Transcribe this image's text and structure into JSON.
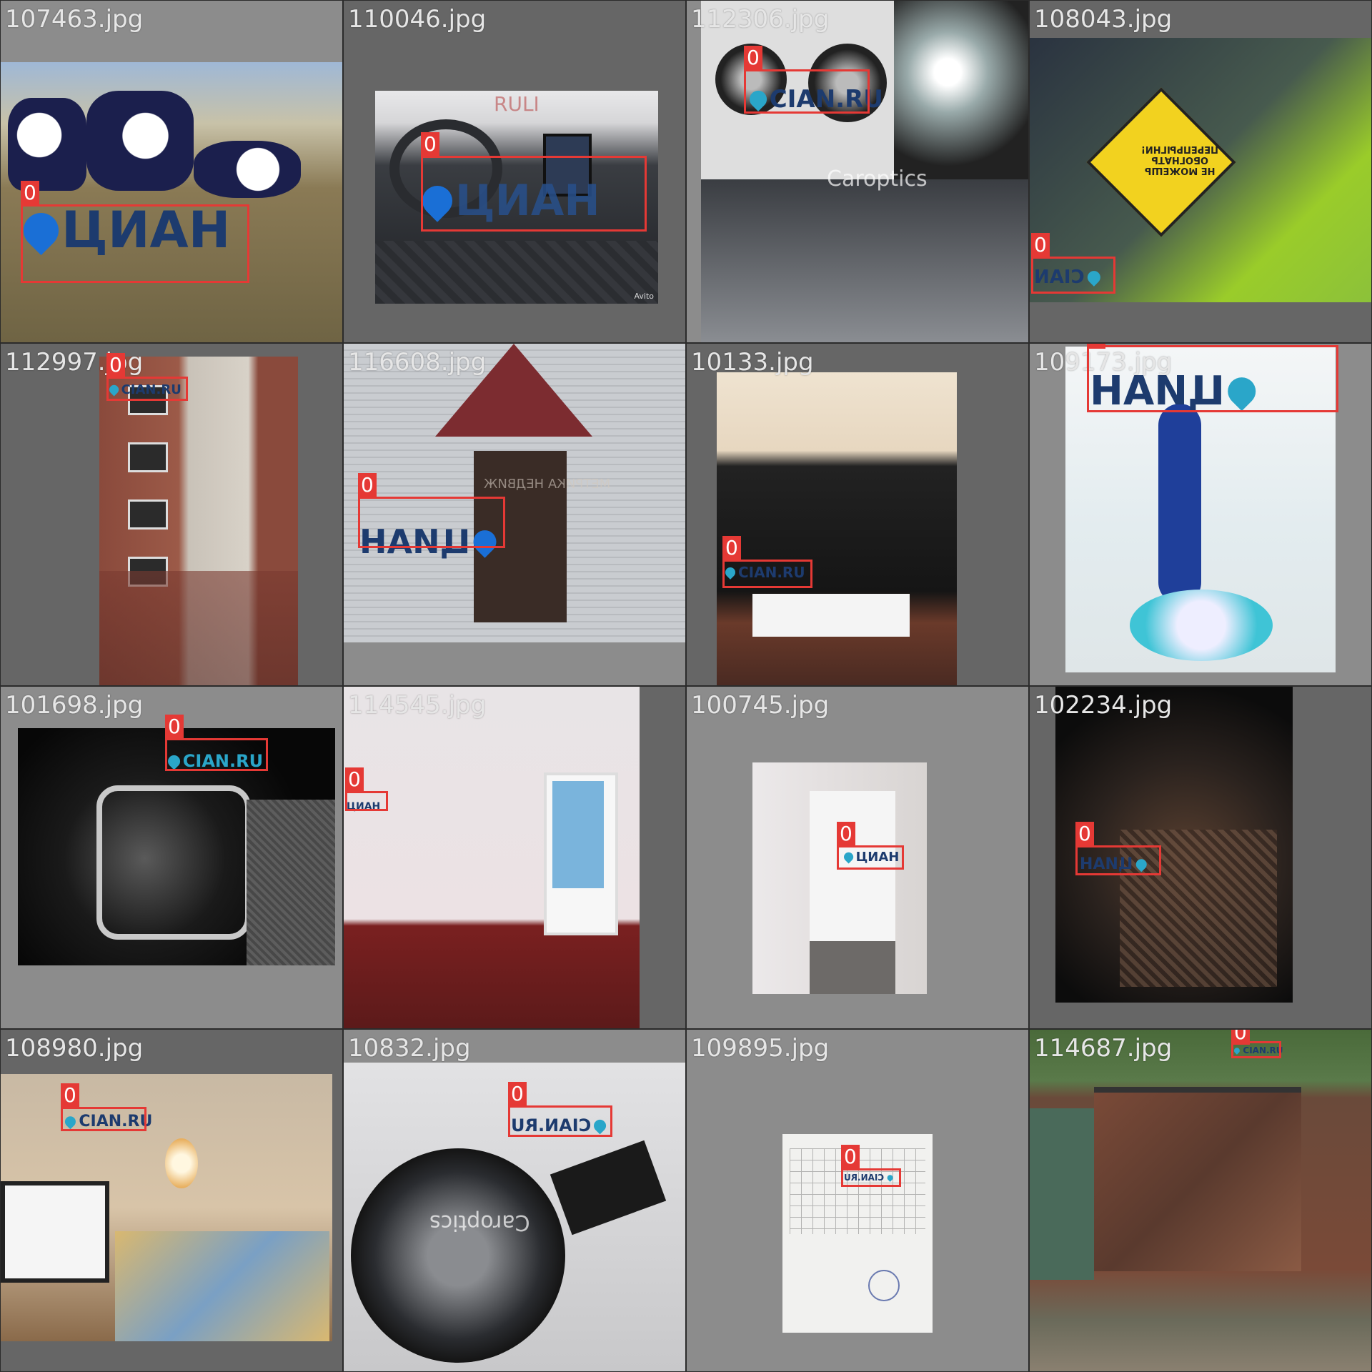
{
  "tiles": [
    {
      "filename": "107463.jpg",
      "watermark": "ЦИАН",
      "label": "0"
    },
    {
      "filename": "110046.jpg",
      "watermark": "ЦИАН",
      "label": "0",
      "overlay": "RULI"
    },
    {
      "filename": "112306.jpg",
      "watermark": "CIAN.RU",
      "label": "0",
      "overlay": "Caroptics"
    },
    {
      "filename": "108043.jpg",
      "watermark": "CIAN",
      "label": "0",
      "sign": "НЕ МОЖЕШЬ ОБОГНАТЬ ПЕРЕПРЫГНИ!"
    },
    {
      "filename": "112997.jpg",
      "watermark": "CIAN.RU",
      "label": "0"
    },
    {
      "filename": "116608.jpg",
      "watermark": "ЦИАН",
      "label": "0",
      "overlay": "МЕТРИКА НЕДВИЖ"
    },
    {
      "filename": "10133.jpg",
      "watermark": "CIAN.RU",
      "label": "0"
    },
    {
      "filename": "109173.jpg",
      "watermark": "ЦИАН",
      "label": "0"
    },
    {
      "filename": "101698.jpg",
      "watermark": "CIAN.RU",
      "label": "0"
    },
    {
      "filename": "114545.jpg",
      "watermark": "ЦИАН",
      "label": "0"
    },
    {
      "filename": "100745.jpg",
      "watermark": "ЦИАН",
      "label": "0"
    },
    {
      "filename": "102234.jpg",
      "watermark": "ЦИАН",
      "label": "0"
    },
    {
      "filename": "108980.jpg",
      "watermark": "CIAN.RU",
      "label": "0"
    },
    {
      "filename": "10832.jpg",
      "watermark": "CIAN.RU",
      "label": "0",
      "overlay": "Caroptics"
    },
    {
      "filename": "109895.jpg",
      "watermark": "CIAN.RU",
      "label": "0"
    },
    {
      "filename": "114687.jpg",
      "watermark": "CIAN.RU",
      "label": "0"
    }
  ],
  "colors": {
    "bbox": "#e53935",
    "tile_dark": "#666666",
    "tile_light": "#8c8c8c",
    "cian_blue": "#1a6fd6",
    "cian_navy": "#1d3b6e",
    "cian_teal": "#2aa6c9"
  }
}
